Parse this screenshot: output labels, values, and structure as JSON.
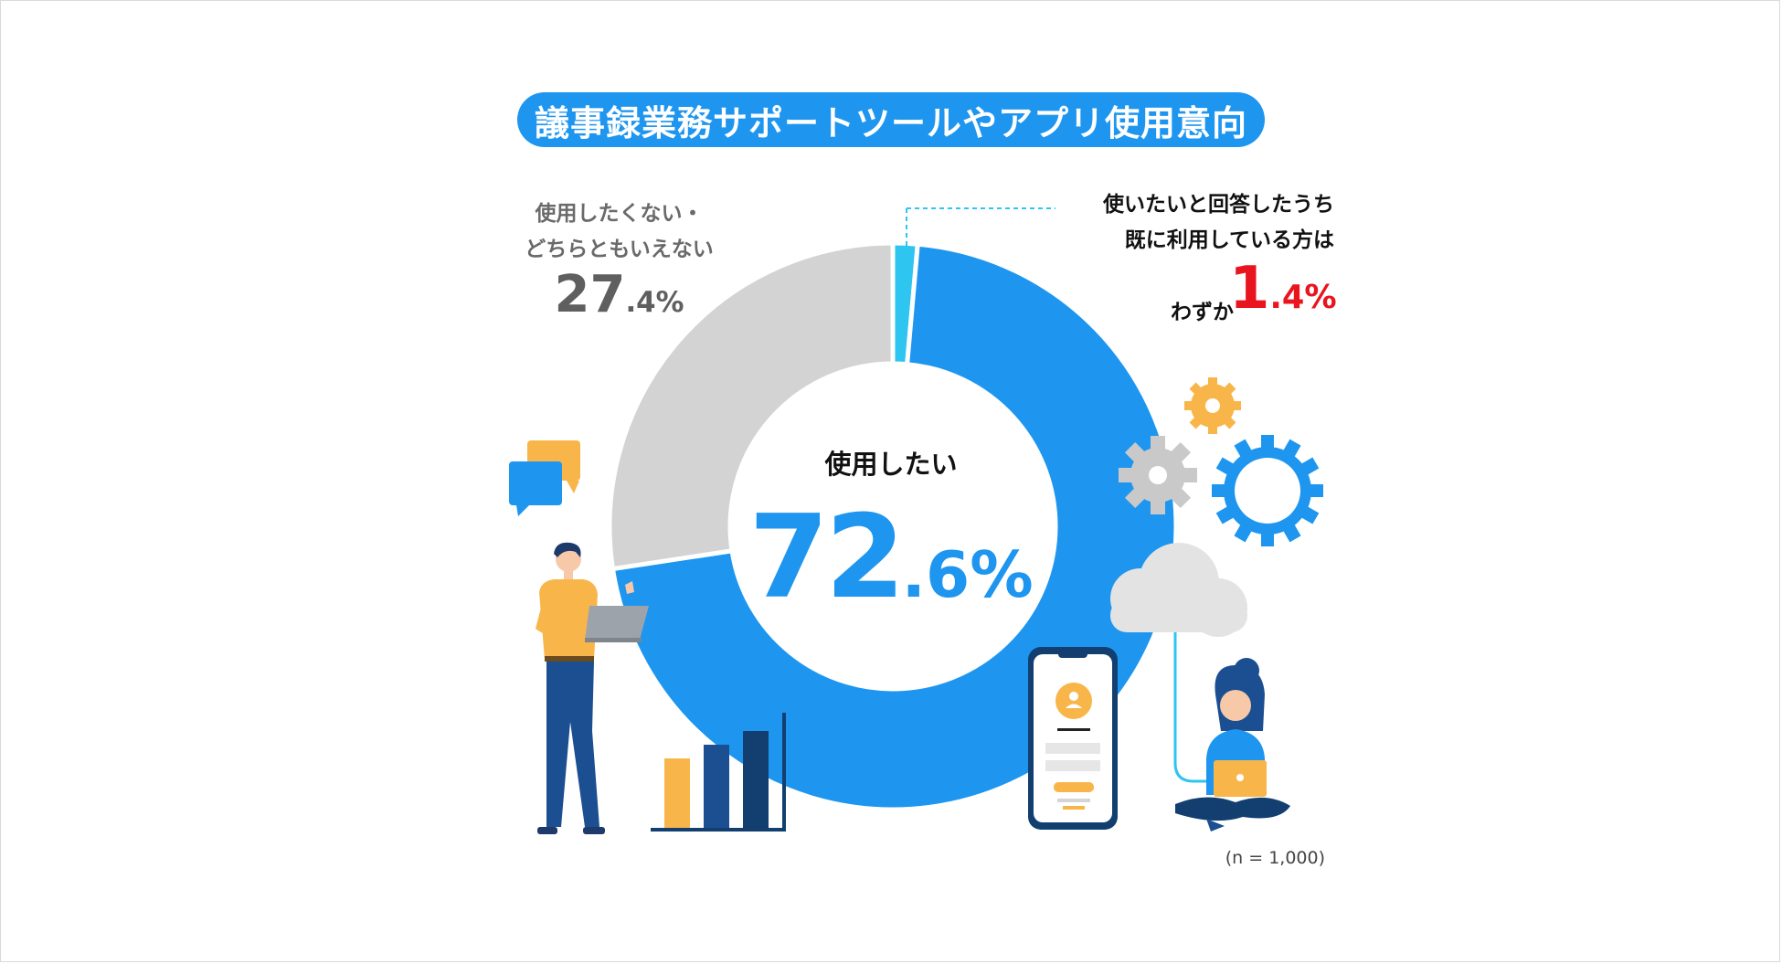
{
  "title": "議事録業務サポートツールやアプリ使用意向",
  "colors": {
    "want": "#1e96f0",
    "already_use": "#2ec5f0",
    "not_want": "#d3d3d3",
    "highlight_red": "#e8141e",
    "title_bg": "#1e96f0"
  },
  "labels": {
    "not_want_line1": "使用したくない・",
    "not_want_line2": "どちらともいえない",
    "not_want_pct_int": "27",
    "not_want_pct_dec": ".4%",
    "want_label": "使用したい",
    "want_pct_int": "72",
    "want_pct_dec": ".6%",
    "already_line1": "使いたいと回答したうち",
    "already_line2": "既に利用している方は",
    "already_prefix": "わずか",
    "already_pct_int": "1",
    "already_pct_dec": ".4%",
    "sample_size": "(n = 1,000)"
  },
  "chart_data": {
    "type": "pie",
    "donut": true,
    "title": "議事録業務サポートツールやアプリ使用意向",
    "slices": [
      {
        "label": "既に利用している",
        "value": 1.4,
        "color": "#2ec5f0"
      },
      {
        "label": "使用したい",
        "value": 71.2,
        "color": "#1e96f0"
      },
      {
        "label": "使用したくない・どちらともいえない",
        "value": 27.4,
        "color": "#d3d3d3"
      }
    ],
    "annotations": {
      "使用したい": 72.6,
      "既に利用している": 1.4
    },
    "n": 1000
  },
  "icons": [
    "chat-bubbles-icon",
    "gear-icon",
    "cloud-icon",
    "smartphone-icon",
    "bar-chart-icon",
    "man-with-laptop-icon",
    "woman-with-laptop-icon"
  ]
}
